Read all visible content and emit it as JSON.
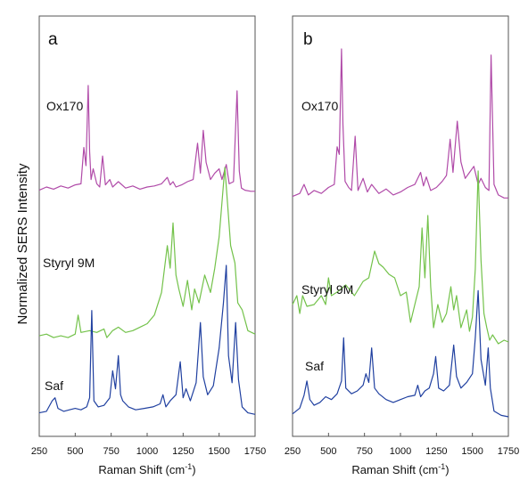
{
  "figure": {
    "ylabel": "Normalized SERS Intensity"
  },
  "chart_data": [
    {
      "type": "line",
      "panel_label": "a",
      "xlabel_main": "Raman Shift (cm",
      "xlabel_sup": "-1",
      "xlabel_end": ")",
      "xlim": [
        250,
        1750
      ],
      "xticks": [
        250,
        500,
        750,
        1000,
        1250,
        1500,
        1750
      ],
      "series": [
        {
          "name": "Ox170",
          "color": "#b04aa8",
          "x": [
            250,
            300,
            350,
            400,
            450,
            500,
            540,
            560,
            575,
            590,
            600,
            610,
            625,
            650,
            670,
            690,
            710,
            740,
            760,
            800,
            850,
            900,
            950,
            1000,
            1050,
            1100,
            1140,
            1160,
            1180,
            1200,
            1240,
            1280,
            1320,
            1350,
            1370,
            1390,
            1410,
            1440,
            1470,
            1500,
            1520,
            1550,
            1570,
            1600,
            1625,
            1640,
            1655,
            1680,
            1720,
            1750
          ],
          "y": [
            0.02,
            0.05,
            0.03,
            0.06,
            0.04,
            0.07,
            0.08,
            0.42,
            0.25,
            1.0,
            0.38,
            0.12,
            0.22,
            0.08,
            0.05,
            0.34,
            0.07,
            0.12,
            0.05,
            0.1,
            0.04,
            0.06,
            0.03,
            0.05,
            0.06,
            0.08,
            0.14,
            0.07,
            0.1,
            0.05,
            0.07,
            0.1,
            0.12,
            0.46,
            0.18,
            0.58,
            0.28,
            0.12,
            0.18,
            0.22,
            0.12,
            0.26,
            0.08,
            0.1,
            0.95,
            0.2,
            0.04,
            0.02,
            0.01,
            0.01
          ]
        },
        {
          "name": "Styryl 9M",
          "color": "#73c24a",
          "x": [
            250,
            300,
            350,
            400,
            450,
            500,
            520,
            540,
            600,
            650,
            700,
            720,
            760,
            800,
            850,
            900,
            950,
            1000,
            1050,
            1100,
            1140,
            1160,
            1180,
            1200,
            1220,
            1250,
            1280,
            1310,
            1330,
            1360,
            1400,
            1440,
            1470,
            1500,
            1520,
            1540,
            1560,
            1580,
            1610,
            1630,
            1660,
            1700,
            1750
          ],
          "y": [
            0.03,
            0.04,
            0.02,
            0.03,
            0.02,
            0.04,
            0.15,
            0.05,
            0.06,
            0.05,
            0.07,
            0.02,
            0.06,
            0.08,
            0.05,
            0.06,
            0.08,
            0.1,
            0.15,
            0.28,
            0.55,
            0.42,
            0.68,
            0.38,
            0.3,
            0.2,
            0.35,
            0.18,
            0.3,
            0.22,
            0.38,
            0.28,
            0.42,
            0.6,
            0.8,
            1.0,
            0.78,
            0.55,
            0.45,
            0.22,
            0.18,
            0.06,
            0.04
          ]
        },
        {
          "name": "Saf",
          "color": "#2040a0",
          "x": [
            250,
            300,
            340,
            360,
            380,
            420,
            460,
            500,
            540,
            580,
            600,
            615,
            630,
            660,
            700,
            740,
            760,
            780,
            800,
            815,
            830,
            870,
            920,
            980,
            1040,
            1090,
            1110,
            1130,
            1160,
            1200,
            1230,
            1250,
            1270,
            1300,
            1340,
            1370,
            1390,
            1420,
            1460,
            1500,
            1530,
            1550,
            1565,
            1590,
            1615,
            1635,
            1660,
            1700,
            1750
          ],
          "y": [
            0.02,
            0.03,
            0.1,
            0.12,
            0.05,
            0.03,
            0.04,
            0.05,
            0.04,
            0.06,
            0.12,
            0.7,
            0.1,
            0.06,
            0.07,
            0.12,
            0.3,
            0.18,
            0.4,
            0.14,
            0.1,
            0.06,
            0.04,
            0.05,
            0.06,
            0.08,
            0.14,
            0.06,
            0.1,
            0.14,
            0.36,
            0.12,
            0.18,
            0.1,
            0.22,
            0.62,
            0.26,
            0.14,
            0.2,
            0.45,
            0.75,
            1.0,
            0.4,
            0.22,
            0.62,
            0.24,
            0.06,
            0.02,
            0.01
          ]
        }
      ]
    },
    {
      "type": "line",
      "panel_label": "b",
      "xlabel_main": "Raman Shift (cm",
      "xlabel_sup": "-1",
      "xlabel_end": ")",
      "xlim": [
        250,
        1750
      ],
      "xticks": [
        250,
        500,
        750,
        1000,
        1250,
        1500,
        1750
      ],
      "series": [
        {
          "name": "Ox170",
          "color": "#b04aa8",
          "x": [
            250,
            300,
            330,
            360,
            400,
            450,
            500,
            540,
            560,
            575,
            590,
            600,
            615,
            640,
            660,
            685,
            705,
            740,
            770,
            800,
            850,
            900,
            950,
            1000,
            1050,
            1100,
            1140,
            1160,
            1180,
            1210,
            1250,
            1290,
            1320,
            1345,
            1365,
            1395,
            1420,
            1450,
            1480,
            1510,
            1540,
            1560,
            1590,
            1615,
            1630,
            1650,
            1680,
            1720,
            1750
          ],
          "y": [
            0.02,
            0.04,
            0.1,
            0.03,
            0.06,
            0.04,
            0.08,
            0.1,
            0.35,
            0.3,
            1.0,
            0.5,
            0.12,
            0.08,
            0.06,
            0.42,
            0.06,
            0.14,
            0.05,
            0.1,
            0.04,
            0.07,
            0.03,
            0.05,
            0.08,
            0.1,
            0.18,
            0.09,
            0.15,
            0.06,
            0.08,
            0.12,
            0.16,
            0.4,
            0.18,
            0.52,
            0.25,
            0.14,
            0.18,
            0.22,
            0.1,
            0.14,
            0.08,
            0.06,
            0.96,
            0.1,
            0.03,
            0.01,
            0.01
          ]
        },
        {
          "name": "Styryl 9M",
          "color": "#73c24a",
          "x": [
            250,
            280,
            300,
            320,
            350,
            400,
            450,
            480,
            500,
            520,
            560,
            620,
            680,
            740,
            780,
            820,
            850,
            880,
            920,
            960,
            1000,
            1040,
            1070,
            1100,
            1130,
            1150,
            1170,
            1190,
            1210,
            1230,
            1260,
            1290,
            1320,
            1350,
            1370,
            1390,
            1420,
            1460,
            1480,
            1500,
            1520,
            1540,
            1560,
            1580,
            1600,
            1620,
            1640,
            1680,
            1720,
            1750
          ],
          "y": [
            0.25,
            0.3,
            0.2,
            0.3,
            0.24,
            0.25,
            0.3,
            0.25,
            0.4,
            0.3,
            0.32,
            0.36,
            0.3,
            0.38,
            0.4,
            0.55,
            0.48,
            0.46,
            0.42,
            0.4,
            0.3,
            0.32,
            0.15,
            0.25,
            0.35,
            0.68,
            0.4,
            0.75,
            0.35,
            0.12,
            0.25,
            0.15,
            0.2,
            0.35,
            0.22,
            0.3,
            0.12,
            0.22,
            0.1,
            0.18,
            0.45,
            1.0,
            0.5,
            0.2,
            0.12,
            0.05,
            0.08,
            0.03,
            0.05,
            0.04
          ]
        },
        {
          "name": "Saf",
          "color": "#2040a0",
          "x": [
            250,
            300,
            330,
            350,
            370,
            400,
            440,
            480,
            520,
            560,
            590,
            605,
            620,
            660,
            700,
            740,
            760,
            780,
            800,
            820,
            850,
            900,
            950,
            1000,
            1050,
            1100,
            1120,
            1140,
            1170,
            1200,
            1230,
            1245,
            1265,
            1300,
            1340,
            1370,
            1390,
            1420,
            1460,
            1500,
            1520,
            1540,
            1560,
            1590,
            1610,
            1625,
            1650,
            1700,
            1750
          ],
          "y": [
            0.02,
            0.06,
            0.15,
            0.25,
            0.12,
            0.08,
            0.1,
            0.14,
            0.12,
            0.16,
            0.25,
            0.55,
            0.2,
            0.16,
            0.18,
            0.22,
            0.3,
            0.24,
            0.48,
            0.2,
            0.16,
            0.12,
            0.1,
            0.12,
            0.14,
            0.15,
            0.22,
            0.14,
            0.18,
            0.2,
            0.3,
            0.42,
            0.2,
            0.18,
            0.22,
            0.5,
            0.28,
            0.2,
            0.24,
            0.3,
            0.55,
            0.88,
            0.4,
            0.22,
            0.48,
            0.2,
            0.04,
            0.01,
            0.0
          ]
        }
      ]
    }
  ]
}
